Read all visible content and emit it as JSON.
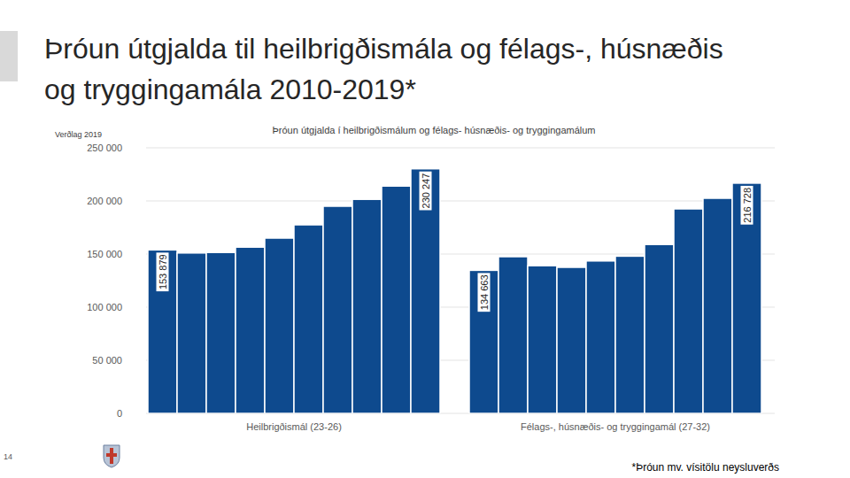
{
  "chart_data": {
    "type": "bar",
    "title": "Þróun útgjalda til heilbrigðismála og félags-, húsnæðis og tryggingamála 2010-2019*",
    "subtitle": "Þróun útgjalda í heilbrigðismálum og félags- húsnæðis- og tryggingamálum",
    "y_label": "Verðlag 2019",
    "footnote": "*Þróun mv. vísitölu neysluverðs",
    "page_number": "14",
    "categories": [
      null,
      null,
      null,
      null,
      null,
      null,
      null,
      null,
      null,
      null
    ],
    "series": [
      {
        "name": "Heilbrigðismál (23-26)",
        "values": [
          153879,
          151000,
          151500,
          156500,
          165000,
          177500,
          195000,
          201500,
          214000,
          230247
        ],
        "value_labels": [
          "153 879",
          null,
          null,
          null,
          null,
          null,
          null,
          null,
          null,
          "230 247"
        ]
      },
      {
        "name": "Félags-, húsnæðis- og tryggingamál (27-32)",
        "values": [
          134663,
          147500,
          139000,
          137500,
          143500,
          148000,
          159000,
          192500,
          202500,
          216728
        ],
        "value_labels": [
          "134 663",
          null,
          null,
          null,
          null,
          null,
          null,
          null,
          null,
          "216 728"
        ]
      }
    ],
    "color": "#0e4a8e",
    "ylim": [
      0,
      250000
    ],
    "yticks": [
      0,
      {
        "value": 50000,
        "label": "50 000"
      },
      {
        "value": 100000,
        "label": "100 000"
      },
      {
        "value": 150000,
        "label": "150 000"
      },
      {
        "value": 200000,
        "label": "200 000"
      },
      {
        "value": 250000,
        "label": "250 000"
      }
    ],
    "grid": true,
    "data_labels": true
  }
}
